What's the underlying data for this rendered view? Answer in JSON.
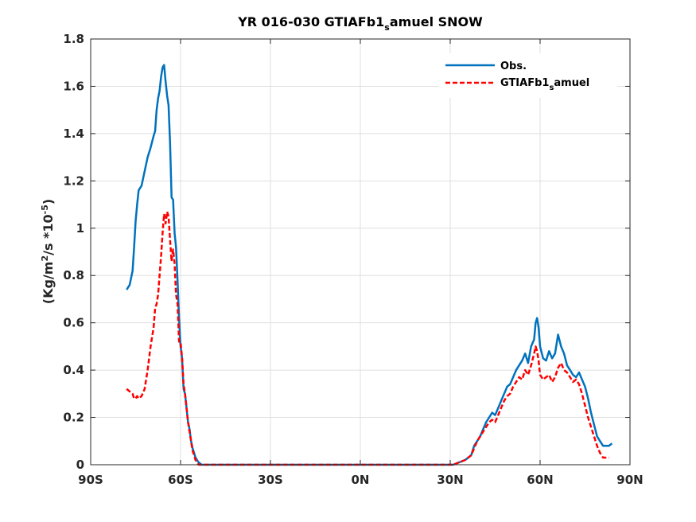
{
  "chart_data": {
    "type": "line",
    "title_parts": [
      "YR 016-030 GTIAFb1",
      "s",
      "amuel SNOW"
    ],
    "ylabel_parts": [
      "(Kg/m",
      "2",
      "/s *10",
      "-5",
      ")"
    ],
    "xlim": [
      -90,
      90
    ],
    "ylim": [
      0,
      1.8
    ],
    "x_ticks": [
      -90,
      -60,
      -30,
      0,
      30,
      60,
      90
    ],
    "x_tick_labels": [
      "90S",
      "60S",
      "30S",
      "0N",
      "30N",
      "60N",
      "90N"
    ],
    "y_ticks": [
      0,
      0.2,
      0.4,
      0.6,
      0.8,
      1,
      1.2,
      1.4,
      1.6,
      1.8
    ],
    "y_tick_labels": [
      "0",
      "0.2",
      "0.4",
      "0.6",
      "0.8",
      "1",
      "1.2",
      "1.4",
      "1.6",
      "1.8"
    ],
    "grid": true,
    "legend_position": "top-right",
    "series": [
      {
        "name": "Obs.",
        "color": "#0072BD",
        "dash": "solid",
        "points": [
          [
            -78,
            0.74
          ],
          [
            -77,
            0.76
          ],
          [
            -76,
            0.82
          ],
          [
            -75.5,
            0.92
          ],
          [
            -75,
            1.03
          ],
          [
            -74.5,
            1.1
          ],
          [
            -74,
            1.16
          ],
          [
            -73,
            1.18
          ],
          [
            -72,
            1.24
          ],
          [
            -71,
            1.3
          ],
          [
            -70,
            1.34
          ],
          [
            -69,
            1.39
          ],
          [
            -68.5,
            1.41
          ],
          [
            -68,
            1.5
          ],
          [
            -67.5,
            1.55
          ],
          [
            -67,
            1.58
          ],
          [
            -66.5,
            1.64
          ],
          [
            -66,
            1.68
          ],
          [
            -65.5,
            1.69
          ],
          [
            -65,
            1.62
          ],
          [
            -64.5,
            1.56
          ],
          [
            -64,
            1.52
          ],
          [
            -63.5,
            1.36
          ],
          [
            -63,
            1.13
          ],
          [
            -62.5,
            1.12
          ],
          [
            -62,
            0.98
          ],
          [
            -61.5,
            0.92
          ],
          [
            -61,
            0.78
          ],
          [
            -60.5,
            0.62
          ],
          [
            -60,
            0.5
          ],
          [
            -59.5,
            0.45
          ],
          [
            -59,
            0.32
          ],
          [
            -58.5,
            0.3
          ],
          [
            -58,
            0.24
          ],
          [
            -57.5,
            0.18
          ],
          [
            -57,
            0.15
          ],
          [
            -56.5,
            0.1
          ],
          [
            -56,
            0.07
          ],
          [
            -55.5,
            0.05
          ],
          [
            -55,
            0.03
          ],
          [
            -54.5,
            0.02
          ],
          [
            -54,
            0.01
          ],
          [
            -53,
            0.0
          ],
          [
            -40,
            0.0
          ],
          [
            -20,
            0.0
          ],
          [
            0,
            0.0
          ],
          [
            20,
            0.0
          ],
          [
            31,
            0.0
          ],
          [
            33,
            0.01
          ],
          [
            35,
            0.02
          ],
          [
            37,
            0.04
          ],
          [
            38,
            0.08
          ],
          [
            39,
            0.1
          ],
          [
            40,
            0.12
          ],
          [
            41,
            0.15
          ],
          [
            42,
            0.18
          ],
          [
            43,
            0.2
          ],
          [
            44,
            0.22
          ],
          [
            45,
            0.21
          ],
          [
            46,
            0.24
          ],
          [
            47,
            0.27
          ],
          [
            48,
            0.3
          ],
          [
            49,
            0.33
          ],
          [
            50,
            0.34
          ],
          [
            51,
            0.37
          ],
          [
            52,
            0.4
          ],
          [
            53,
            0.42
          ],
          [
            54,
            0.44
          ],
          [
            55,
            0.47
          ],
          [
            56,
            0.43
          ],
          [
            57,
            0.5
          ],
          [
            58,
            0.53
          ],
          [
            58.5,
            0.6
          ],
          [
            59,
            0.62
          ],
          [
            59.5,
            0.58
          ],
          [
            60,
            0.5
          ],
          [
            61,
            0.45
          ],
          [
            62,
            0.44
          ],
          [
            63,
            0.48
          ],
          [
            64,
            0.45
          ],
          [
            65,
            0.47
          ],
          [
            66,
            0.55
          ],
          [
            67,
            0.5
          ],
          [
            68,
            0.47
          ],
          [
            69,
            0.42
          ],
          [
            70,
            0.4
          ],
          [
            71,
            0.38
          ],
          [
            72,
            0.37
          ],
          [
            73,
            0.39
          ],
          [
            74,
            0.36
          ],
          [
            75,
            0.33
          ],
          [
            76,
            0.28
          ],
          [
            77,
            0.22
          ],
          [
            78,
            0.17
          ],
          [
            79,
            0.12
          ],
          [
            80,
            0.1
          ],
          [
            81,
            0.08
          ],
          [
            82,
            0.08
          ],
          [
            83,
            0.08
          ],
          [
            84,
            0.09
          ]
        ]
      },
      {
        "name": "GTIAFb1samuel",
        "name_parts": [
          "GTIAFb1",
          "s",
          "amuel"
        ],
        "color": "#FF0000",
        "dash": "dashed",
        "points": [
          [
            -78,
            0.32
          ],
          [
            -77,
            0.31
          ],
          [
            -76,
            0.3
          ],
          [
            -75.5,
            0.28
          ],
          [
            -75,
            0.28
          ],
          [
            -74.5,
            0.29
          ],
          [
            -74,
            0.28
          ],
          [
            -73,
            0.29
          ],
          [
            -72,
            0.32
          ],
          [
            -71,
            0.4
          ],
          [
            -70,
            0.5
          ],
          [
            -69,
            0.58
          ],
          [
            -68.5,
            0.66
          ],
          [
            -68,
            0.68
          ],
          [
            -67.5,
            0.72
          ],
          [
            -67,
            0.8
          ],
          [
            -66.5,
            0.88
          ],
          [
            -66,
            0.98
          ],
          [
            -65.5,
            1.06
          ],
          [
            -65,
            1.02
          ],
          [
            -64.5,
            1.07
          ],
          [
            -64,
            1.05
          ],
          [
            -63.5,
            0.95
          ],
          [
            -63,
            0.86
          ],
          [
            -62.5,
            0.91
          ],
          [
            -62,
            0.85
          ],
          [
            -61.5,
            0.72
          ],
          [
            -61,
            0.68
          ],
          [
            -60.5,
            0.52
          ],
          [
            -60,
            0.52
          ],
          [
            -59.5,
            0.45
          ],
          [
            -59,
            0.34
          ],
          [
            -58.5,
            0.3
          ],
          [
            -58,
            0.24
          ],
          [
            -57.5,
            0.18
          ],
          [
            -57,
            0.14
          ],
          [
            -56.5,
            0.1
          ],
          [
            -56,
            0.06
          ],
          [
            -55.5,
            0.04
          ],
          [
            -55,
            0.02
          ],
          [
            -54.5,
            0.01
          ],
          [
            -54,
            0.0
          ],
          [
            -53,
            0.0
          ],
          [
            -40,
            0.0
          ],
          [
            -20,
            0.0
          ],
          [
            0,
            0.0
          ],
          [
            20,
            0.0
          ],
          [
            31,
            0.0
          ],
          [
            33,
            0.01
          ],
          [
            35,
            0.02
          ],
          [
            37,
            0.04
          ],
          [
            38,
            0.07
          ],
          [
            39,
            0.1
          ],
          [
            40,
            0.12
          ],
          [
            41,
            0.14
          ],
          [
            42,
            0.16
          ],
          [
            43,
            0.18
          ],
          [
            44,
            0.19
          ],
          [
            45,
            0.18
          ],
          [
            46,
            0.21
          ],
          [
            47,
            0.24
          ],
          [
            48,
            0.27
          ],
          [
            49,
            0.29
          ],
          [
            50,
            0.3
          ],
          [
            51,
            0.33
          ],
          [
            52,
            0.35
          ],
          [
            53,
            0.37
          ],
          [
            54,
            0.36
          ],
          [
            55,
            0.4
          ],
          [
            56,
            0.38
          ],
          [
            57,
            0.42
          ],
          [
            58,
            0.47
          ],
          [
            58.5,
            0.5
          ],
          [
            59,
            0.48
          ],
          [
            59.5,
            0.44
          ],
          [
            60,
            0.38
          ],
          [
            61,
            0.36
          ],
          [
            62,
            0.37
          ],
          [
            63,
            0.38
          ],
          [
            64,
            0.35
          ],
          [
            65,
            0.37
          ],
          [
            66,
            0.41
          ],
          [
            67,
            0.43
          ],
          [
            68,
            0.4
          ],
          [
            69,
            0.39
          ],
          [
            70,
            0.37
          ],
          [
            71,
            0.35
          ],
          [
            72,
            0.36
          ],
          [
            73,
            0.34
          ],
          [
            74,
            0.3
          ],
          [
            75,
            0.25
          ],
          [
            76,
            0.2
          ],
          [
            77,
            0.16
          ],
          [
            78,
            0.12
          ],
          [
            79,
            0.08
          ],
          [
            80,
            0.05
          ],
          [
            81,
            0.03
          ],
          [
            82,
            0.03
          ],
          [
            83,
            0.03
          ]
        ]
      }
    ]
  }
}
